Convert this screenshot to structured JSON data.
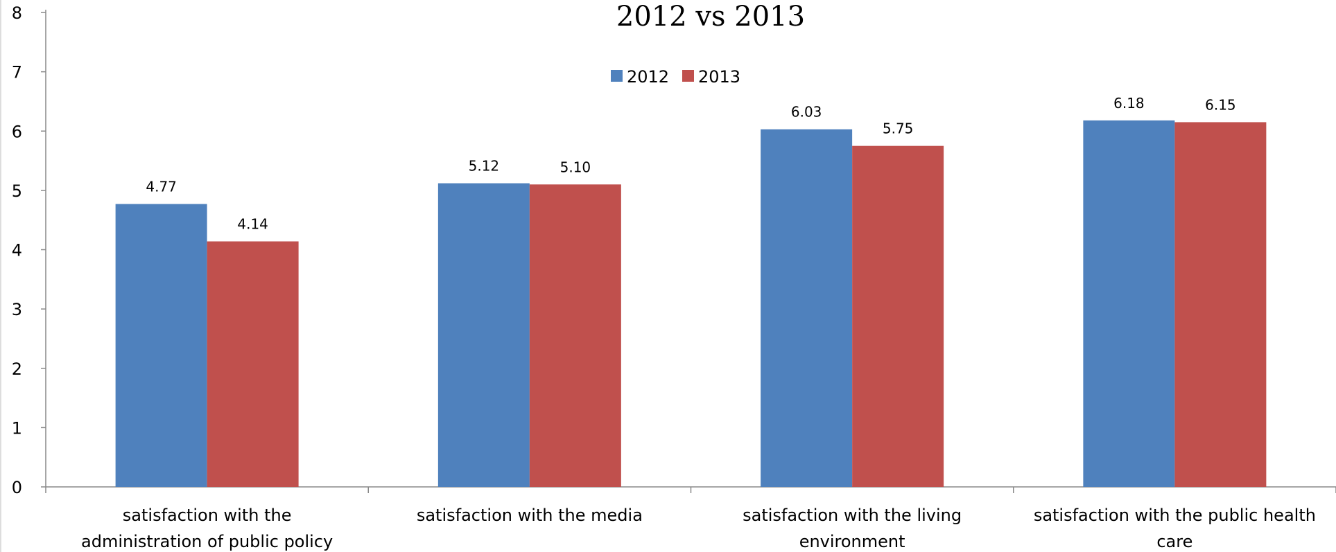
{
  "chart_data": {
    "type": "bar",
    "title": "2012 vs 2013",
    "xlabel": "",
    "ylabel": "",
    "ylim": [
      0,
      8
    ],
    "yticks": [
      "0",
      "1",
      "2",
      "3",
      "4",
      "5",
      "6",
      "7",
      "8"
    ],
    "categories": [
      [
        "satisfaction with the",
        "administration of public policy"
      ],
      [
        "satisfaction with the media"
      ],
      [
        "satisfaction with the living",
        "environment"
      ],
      [
        "satisfaction with the public health",
        "care"
      ]
    ],
    "series": [
      {
        "name": "2012",
        "color": "#4F81BD",
        "values": [
          4.77,
          5.12,
          6.03,
          6.18
        ],
        "labels": [
          "4.77",
          "5.12",
          "6.03",
          "6.18"
        ]
      },
      {
        "name": "2013",
        "color": "#C0504D",
        "values": [
          4.14,
          5.1,
          5.75,
          6.15
        ],
        "labels": [
          "4.14",
          "5.10",
          "5.75",
          "6.15"
        ]
      }
    ],
    "legend": "top-center",
    "grid": false
  }
}
